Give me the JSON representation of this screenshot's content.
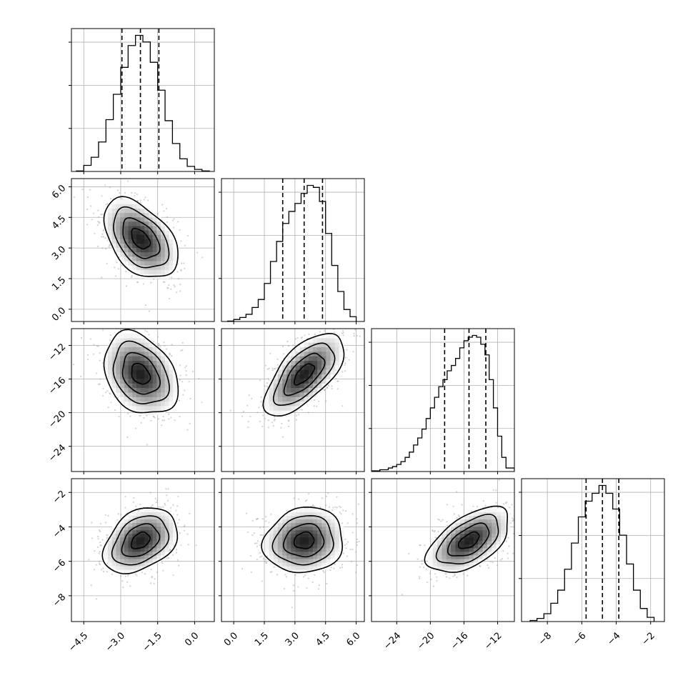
{
  "chart_data": {
    "type": "corner",
    "params": [
      {
        "range": [
          -5.0,
          0.8
        ],
        "ticks": [
          -4.5,
          -3.0,
          -1.5,
          0.0
        ],
        "tick_labels": [
          "−4.5",
          "−3.0",
          "−1.5",
          "0.0"
        ],
        "quantiles": [
          -2.95,
          -2.2,
          -1.45
        ],
        "histogram": {
          "bin_edges": [
            -4.8,
            -4.5,
            -4.2,
            -3.9,
            -3.6,
            -3.3,
            -3.0,
            -2.7,
            -2.4,
            -2.1,
            -1.8,
            -1.5,
            -1.2,
            -0.9,
            -0.6,
            -0.3,
            0.0,
            0.3,
            0.6
          ],
          "counts": [
            1,
            12,
            28,
            58,
            102,
            152,
            205,
            248,
            268,
            255,
            215,
            160,
            100,
            55,
            25,
            10,
            4,
            1
          ]
        }
      },
      {
        "range": [
          -0.6,
          6.4
        ],
        "ticks": [
          0.0,
          1.5,
          3.0,
          4.5,
          6.0
        ],
        "tick_labels": [
          "0.0",
          "1.5",
          "3.0",
          "4.5",
          "6.0"
        ],
        "quantiles": [
          2.4,
          3.45,
          4.35
        ],
        "histogram": {
          "bin_edges": [
            -0.3,
            0.0,
            0.3,
            0.6,
            0.9,
            1.2,
            1.5,
            1.8,
            2.1,
            2.4,
            2.7,
            3.0,
            3.3,
            3.6,
            3.9,
            4.2,
            4.5,
            4.8,
            5.1,
            5.4,
            5.7,
            6.0
          ],
          "counts": [
            1,
            5,
            10,
            18,
            35,
            55,
            95,
            150,
            200,
            245,
            275,
            295,
            320,
            340,
            335,
            300,
            220,
            140,
            75,
            30,
            12
          ]
        }
      },
      {
        "range": [
          -27.0,
          -10.0
        ],
        "ticks": [
          -24,
          -20,
          -16,
          -12
        ],
        "tick_labels": [
          "−24",
          "−20",
          "−16",
          "−12"
        ],
        "quantiles": [
          -18.3,
          -15.4,
          -13.4
        ],
        "histogram": {
          "bin_edges": [
            -27.0,
            -26.0,
            -25.0,
            -24.5,
            -24.0,
            -23.5,
            -23.0,
            -22.5,
            -22.0,
            -21.5,
            -21.0,
            -20.5,
            -20.0,
            -19.5,
            -19.0,
            -18.5,
            -18.0,
            -17.5,
            -17.0,
            -16.5,
            -16.0,
            -15.5,
            -15.0,
            -14.5,
            -14.0,
            -13.5,
            -13.0,
            -12.5,
            -12.0,
            -11.5,
            -11.0,
            -10.0
          ],
          "counts": [
            2,
            5,
            10,
            14,
            20,
            28,
            40,
            55,
            75,
            95,
            120,
            150,
            180,
            210,
            240,
            260,
            285,
            300,
            320,
            350,
            370,
            380,
            385,
            380,
            360,
            330,
            260,
            180,
            100,
            40,
            10
          ]
        }
      },
      {
        "range": [
          -9.5,
          -1.2
        ],
        "ticks": [
          -8,
          -6,
          -4,
          -2
        ],
        "tick_labels": [
          "−8",
          "−6",
          "−4",
          "−2"
        ],
        "quantiles": [
          -5.75,
          -4.8,
          -3.85
        ],
        "histogram": {
          "bin_edges": [
            -9.0,
            -8.6,
            -8.2,
            -7.8,
            -7.4,
            -7.0,
            -6.6,
            -6.2,
            -5.8,
            -5.4,
            -5.0,
            -4.6,
            -4.2,
            -3.8,
            -3.4,
            -3.0,
            -2.6,
            -2.2,
            -1.8
          ],
          "counts": [
            2,
            6,
            15,
            35,
            60,
            100,
            150,
            200,
            230,
            245,
            260,
            245,
            215,
            165,
            110,
            60,
            25,
            8
          ]
        }
      }
    ],
    "correlations": [
      {
        "pair": [
          0,
          1
        ],
        "r": -0.45
      },
      {
        "pair": [
          0,
          2
        ],
        "r": -0.3
      },
      {
        "pair": [
          1,
          2
        ],
        "r": 0.65
      },
      {
        "pair": [
          0,
          3
        ],
        "r": 0.35
      },
      {
        "pair": [
          1,
          3
        ],
        "r": 0.1
      },
      {
        "pair": [
          2,
          3
        ],
        "r": 0.55
      }
    ],
    "contour_levels": [
      0.118,
      0.393,
      0.675,
      0.865
    ],
    "grid": true,
    "colors": {
      "hist_line": "#000000",
      "grid": "#b0b0b0",
      "points": "#9a9a9a",
      "density": "#000000"
    }
  }
}
